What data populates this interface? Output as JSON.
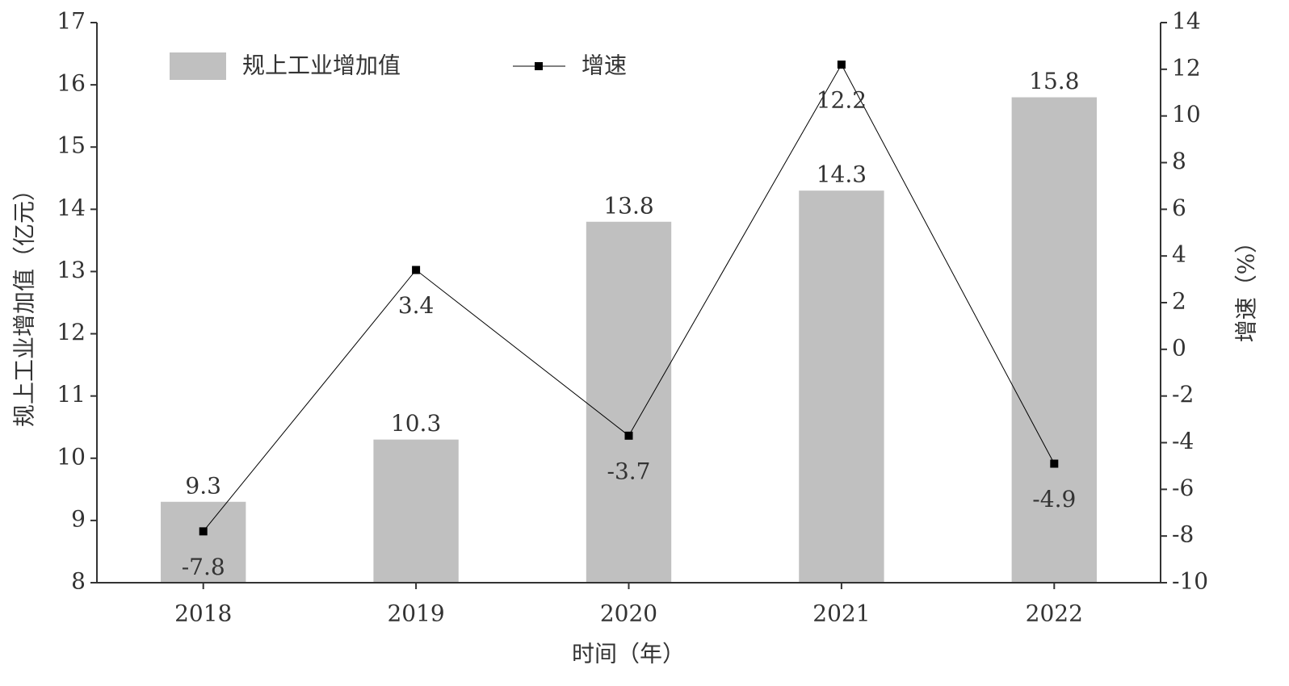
{
  "chart_data": {
    "type": "bar",
    "categories": [
      "2018",
      "2019",
      "2020",
      "2021",
      "2022"
    ],
    "series": [
      {
        "name": "规上工业增加值",
        "type": "bar",
        "color": "#c0c0c0",
        "values": [
          9.3,
          10.3,
          13.8,
          14.3,
          15.8
        ]
      },
      {
        "name": "增速",
        "type": "line",
        "axis": "y2",
        "color": "#000000",
        "values": [
          -7.8,
          3.4,
          -3.7,
          12.2,
          -4.9
        ]
      }
    ],
    "ylim": [
      8,
      17
    ],
    "yticks": [
      8,
      9,
      10,
      11,
      12,
      13,
      14,
      15,
      16,
      17
    ],
    "y2lim": [
      -10,
      14
    ],
    "y2ticks": [
      -10,
      -8,
      -6,
      -4,
      -2,
      0,
      2,
      4,
      6,
      8,
      10,
      12,
      14
    ],
    "x_label": "时间（年）",
    "y_label": "规上工业增加值（亿元）",
    "y2_label": "增速（%）",
    "legend": "upper left",
    "grid": false
  }
}
